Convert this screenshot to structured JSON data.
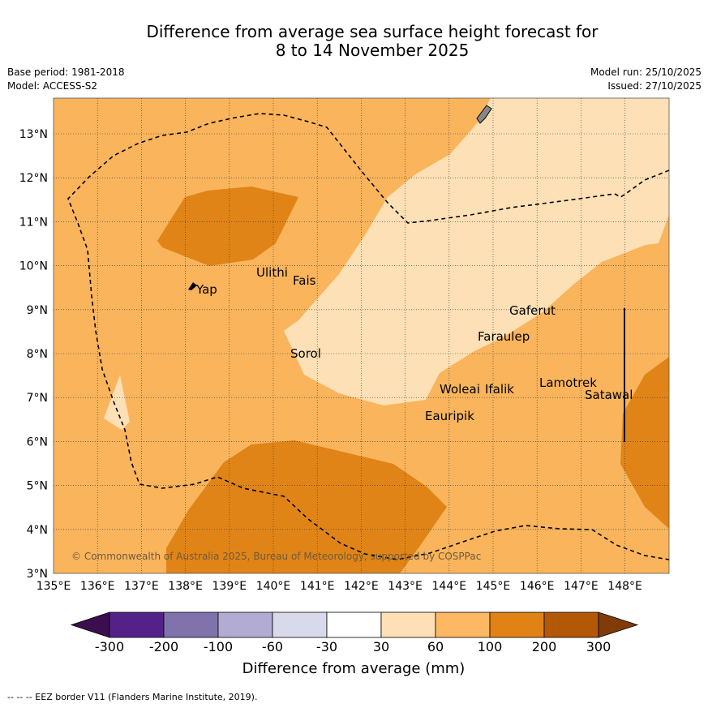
{
  "title_line1": "Difference from average sea surface height forecast for",
  "title_line2": "8 to 14 November 2025",
  "meta_left": {
    "base_period": "Base period: 1981-2018",
    "model": "Model: ACCESS-S2"
  },
  "meta_right": {
    "model_run": "Model run: 25/10/2025",
    "issued": "Issued: 27/10/2025"
  },
  "copyright": "© Commonwealth of Australia 2025, Bureau of Meteorology, supported by COSPPac",
  "footnote": "--  --  -- EEZ border V11 (Flanders Marine Institute, 2019).",
  "map": {
    "lon_labels": [
      "135°E",
      "136°E",
      "137°E",
      "138°E",
      "139°E",
      "140°E",
      "141°E",
      "142°E",
      "143°E",
      "144°E",
      "145°E",
      "146°E",
      "147°E",
      "148°E"
    ],
    "lat_labels": [
      "3°N",
      "4°N",
      "5°N",
      "6°N",
      "7°N",
      "8°N",
      "9°N",
      "10°N",
      "11°N",
      "12°N",
      "13°N"
    ],
    "places": [
      {
        "name": "Yap"
      },
      {
        "name": "Ulithi"
      },
      {
        "name": "Fais"
      },
      {
        "name": "Sorol"
      },
      {
        "name": "Gaferut"
      },
      {
        "name": "Faraulep"
      },
      {
        "name": "Woleai"
      },
      {
        "name": "Ifalik"
      },
      {
        "name": "Eauripik"
      },
      {
        "name": "Lamotrek"
      },
      {
        "name": "Satawal"
      }
    ],
    "colors": {
      "light": "#fde0b5",
      "mid": "#f9b45c",
      "dark": "#e08417",
      "darkest": "#b05a08"
    }
  },
  "colorbar": {
    "label": "Difference from average (mm)",
    "ticks": [
      "-300",
      "-200",
      "-100",
      "-60",
      "-30",
      "30",
      "60",
      "100",
      "200",
      "300"
    ],
    "colors": [
      "#3b0f4e",
      "#542188",
      "#8073ac",
      "#b2abd2",
      "#d8daeb",
      "#ffffff",
      "#fee0b6",
      "#fdb863",
      "#e08214",
      "#b35806",
      "#7f3b08"
    ]
  }
}
